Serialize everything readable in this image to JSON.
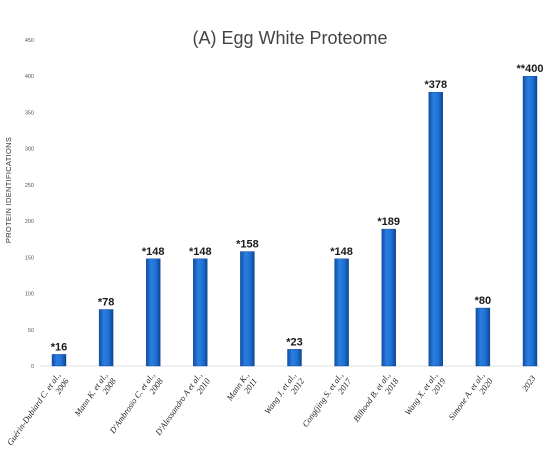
{
  "chart_data": {
    "type": "bar",
    "title": "(A) Egg White Proteome",
    "xlabel": "",
    "ylabel": "PROTEIN IDENTIFICATIONS",
    "ylim": [
      0,
      450
    ],
    "yticks": [
      0,
      50,
      100,
      150,
      200,
      250,
      300,
      350,
      400,
      450
    ],
    "grid": false,
    "legend": "none",
    "bar_color": "#1e6fd0",
    "categories": [
      [
        "Guérin-Dubiard C. et al.,",
        "2006"
      ],
      [
        "Mann K. et al.,",
        "2008"
      ],
      [
        "D'Ambrosio C. et al.,",
        "2008"
      ],
      [
        "D'Alessandro A et al.,",
        "2010"
      ],
      [
        "Mann K.,",
        "2011"
      ],
      [
        "Wang J. et al.,",
        "2012"
      ],
      [
        "Cong(jing S. et al.,",
        "2017"
      ],
      [
        "Bilhood B. et al.,",
        "2018"
      ],
      [
        "Wang X. et al.,",
        "2019"
      ],
      [
        "Simone A. et al.,",
        "2020"
      ],
      [
        "2023"
      ]
    ],
    "values": [
      16,
      78,
      148,
      148,
      158,
      23,
      148,
      189,
      378,
      80,
      400
    ],
    "data_labels": [
      "*16",
      "*78",
      "*148",
      "*148",
      "*158",
      "*23",
      "*148",
      "*189",
      "*378",
      "*80",
      "**400"
    ]
  }
}
